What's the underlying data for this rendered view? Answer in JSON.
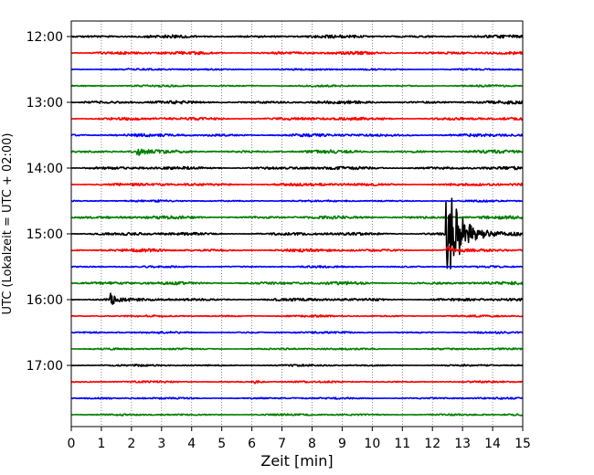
{
  "chart_data": {
    "type": "line",
    "title": "",
    "xlabel": "Zeit  [min]",
    "ylabel": "UTC (Lokalzeit = UTC + 02:00)",
    "xlim": [
      0,
      15
    ],
    "x_ticks": [
      0,
      1,
      2,
      3,
      4,
      5,
      6,
      7,
      8,
      9,
      10,
      11,
      12,
      13,
      14,
      15
    ],
    "x_tick_labels": [
      "0",
      "1",
      "2",
      "3",
      "4",
      "5",
      "6",
      "7",
      "8",
      "9",
      "10",
      "11",
      "12",
      "13",
      "14",
      "15"
    ],
    "y_tick_labels": [
      "12:00",
      "13:00",
      "14:00",
      "15:00",
      "16:00",
      "17:00"
    ],
    "grid": {
      "x": true,
      "style": "dotted"
    },
    "trace_interval_minutes": 15,
    "trace_colors": [
      "#000000",
      "#ff0000",
      "#0000ff",
      "#007f00"
    ],
    "traces": [
      {
        "start": "12:00",
        "color": "#000000",
        "amplitude": "medium"
      },
      {
        "start": "12:15",
        "color": "#ff0000",
        "amplitude": "medium"
      },
      {
        "start": "12:30",
        "color": "#0000ff",
        "amplitude": "low"
      },
      {
        "start": "12:45",
        "color": "#007f00",
        "amplitude": "low"
      },
      {
        "start": "13:00",
        "color": "#000000",
        "amplitude": "medium"
      },
      {
        "start": "13:15",
        "color": "#ff0000",
        "amplitude": "medium"
      },
      {
        "start": "13:30",
        "color": "#0000ff",
        "amplitude": "medium"
      },
      {
        "start": "13:45",
        "color": "#007f00",
        "amplitude": "medium",
        "events": [
          {
            "t": 2.2,
            "amp": "large"
          }
        ]
      },
      {
        "start": "14:00",
        "color": "#000000",
        "amplitude": "medium"
      },
      {
        "start": "14:15",
        "color": "#ff0000",
        "amplitude": "medium"
      },
      {
        "start": "14:30",
        "color": "#0000ff",
        "amplitude": "low"
      },
      {
        "start": "14:45",
        "color": "#007f00",
        "amplitude": "medium"
      },
      {
        "start": "15:00",
        "color": "#000000",
        "amplitude": "medium",
        "events": [
          {
            "t": 12.45,
            "amp": "very large"
          }
        ]
      },
      {
        "start": "15:15",
        "color": "#ff0000",
        "amplitude": "medium",
        "events": [
          {
            "t": 12.5,
            "amp": "large"
          }
        ]
      },
      {
        "start": "15:30",
        "color": "#0000ff",
        "amplitude": "low"
      },
      {
        "start": "15:45",
        "color": "#007f00",
        "amplitude": "medium"
      },
      {
        "start": "16:00",
        "color": "#000000",
        "amplitude": "medium",
        "events": [
          {
            "t": 1.3,
            "amp": "large"
          }
        ]
      },
      {
        "start": "16:15",
        "color": "#ff0000",
        "amplitude": "low"
      },
      {
        "start": "16:30",
        "color": "#0000ff",
        "amplitude": "low"
      },
      {
        "start": "16:45",
        "color": "#007f00",
        "amplitude": "low"
      },
      {
        "start": "17:00",
        "color": "#000000",
        "amplitude": "low"
      },
      {
        "start": "17:15",
        "color": "#ff0000",
        "amplitude": "low",
        "events": [
          {
            "t": 6.1,
            "amp": "medium"
          }
        ]
      },
      {
        "start": "17:30",
        "color": "#0000ff",
        "amplitude": "low"
      },
      {
        "start": "17:45",
        "color": "#007f00",
        "amplitude": "low"
      }
    ]
  }
}
